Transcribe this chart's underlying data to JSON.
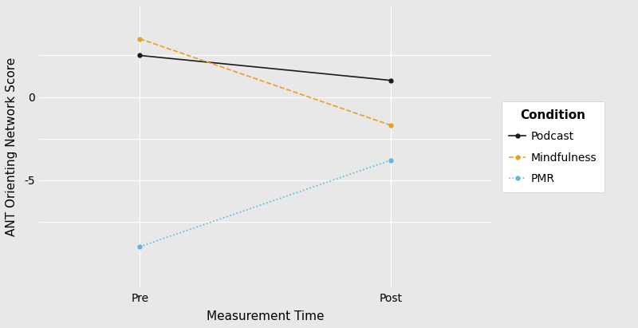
{
  "x_labels": [
    "Pre",
    "Post"
  ],
  "x_positions": [
    1,
    2
  ],
  "series": [
    {
      "label": "Podcast",
      "color": "#1a1a1a",
      "linestyle": "solid",
      "marker": "o",
      "markersize": 3.5,
      "linewidth": 1.2,
      "pre": 2.5,
      "post": 1.0
    },
    {
      "label": "Mindfulness",
      "color": "#E8A020",
      "linestyle": "dashed",
      "marker": "o",
      "markersize": 3.5,
      "linewidth": 1.2,
      "pre": 3.5,
      "post": -1.7
    },
    {
      "label": "PMR",
      "color": "#5BB8E0",
      "linestyle": "dotted",
      "marker": "o",
      "markersize": 3.5,
      "linewidth": 1.2,
      "pre": -9.0,
      "post": -3.8
    }
  ],
  "xlabel": "Measurement Time",
  "ylabel": "ANT Orienting Network Score",
  "legend_title": "Condition",
  "ylim": [
    -11.5,
    5.5
  ],
  "yticks": [
    -5,
    0
  ],
  "y_gridlines": [
    -7.5,
    -5.0,
    -2.5,
    0.0,
    2.5
  ],
  "xlim": [
    0.6,
    2.4
  ],
  "background_color": "#E8E8E8",
  "panel_color": "#E8E8E8",
  "grid_color": "#ffffff",
  "xlabel_fontsize": 11,
  "ylabel_fontsize": 11,
  "legend_fontsize": 10,
  "tick_fontsize": 10
}
